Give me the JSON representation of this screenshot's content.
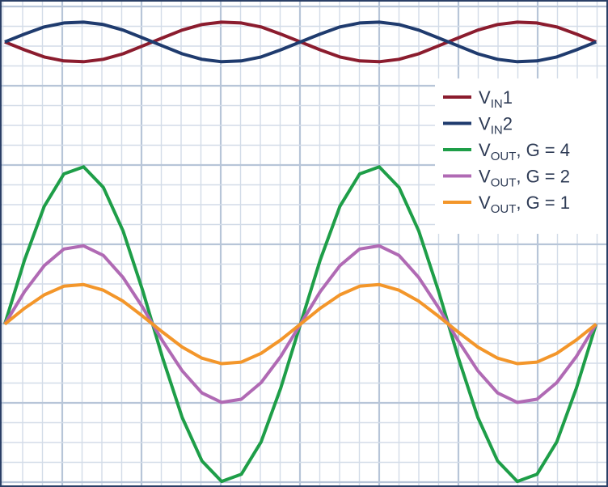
{
  "chart_data": {
    "type": "line",
    "x": [
      0,
      0.25,
      0.5,
      0.75,
      1,
      1.25,
      1.5,
      1.75,
      2,
      2.25,
      2.5,
      2.75,
      3,
      3.25,
      3.5,
      3.75,
      4,
      4.25,
      4.5,
      4.75,
      5,
      5.25,
      5.5,
      5.75,
      6,
      6.25,
      6.5,
      6.75,
      7,
      7.25,
      7.5
    ],
    "xlim": [
      -0.04,
      7.63
    ],
    "ylim": [
      -2.04,
      4.08
    ],
    "grid": true,
    "legend": "upper-right",
    "series": [
      {
        "name": {
          "main": "V",
          "sub": "IN",
          "rest": "1"
        },
        "color": "#8b1c2e",
        "values": [
          3.57,
          3.47,
          3.38,
          3.33,
          3.32,
          3.35,
          3.42,
          3.52,
          3.62,
          3.72,
          3.79,
          3.82,
          3.81,
          3.76,
          3.67,
          3.57,
          3.47,
          3.38,
          3.33,
          3.32,
          3.35,
          3.42,
          3.52,
          3.62,
          3.72,
          3.79,
          3.82,
          3.81,
          3.76,
          3.67,
          3.57
        ]
      },
      {
        "name": {
          "main": "V",
          "sub": "IN",
          "rest": "2"
        },
        "color": "#1f3b6e",
        "values": [
          3.57,
          3.67,
          3.76,
          3.81,
          3.82,
          3.79,
          3.72,
          3.62,
          3.52,
          3.42,
          3.35,
          3.32,
          3.33,
          3.38,
          3.47,
          3.57,
          3.67,
          3.76,
          3.81,
          3.82,
          3.79,
          3.72,
          3.62,
          3.52,
          3.42,
          3.35,
          3.32,
          3.33,
          3.38,
          3.47,
          3.57
        ]
      },
      {
        "name": {
          "main": "V",
          "sub": "OUT",
          "rest": ", G = 4"
        },
        "color": "#1e9e48",
        "values": [
          0,
          0.81,
          1.49,
          1.9,
          1.99,
          1.73,
          1.18,
          0.42,
          -0.42,
          -1.18,
          -1.73,
          -1.99,
          -1.9,
          -1.49,
          -0.81,
          0,
          0.81,
          1.49,
          1.9,
          1.99,
          1.73,
          1.18,
          0.42,
          -0.42,
          -1.18,
          -1.73,
          -1.99,
          -1.9,
          -1.49,
          -0.81,
          0
        ]
      },
      {
        "name": {
          "main": "V",
          "sub": "OUT",
          "rest": ", G = 2"
        },
        "color": "#b06ab4",
        "values": [
          0,
          0.41,
          0.74,
          0.95,
          0.99,
          0.87,
          0.59,
          0.21,
          -0.21,
          -0.59,
          -0.87,
          -0.99,
          -0.95,
          -0.74,
          -0.41,
          0,
          0.41,
          0.74,
          0.95,
          0.99,
          0.87,
          0.59,
          0.21,
          -0.21,
          -0.59,
          -0.87,
          -0.99,
          -0.95,
          -0.74,
          -0.41,
          0
        ]
      },
      {
        "name": {
          "main": "V",
          "sub": "OUT",
          "rest": ", G = 1"
        },
        "color": "#f3962a",
        "values": [
          0,
          0.2,
          0.37,
          0.48,
          0.5,
          0.43,
          0.29,
          0.1,
          -0.1,
          -0.29,
          -0.43,
          -0.5,
          -0.48,
          -0.37,
          -0.2,
          0,
          0.2,
          0.37,
          0.48,
          0.5,
          0.43,
          0.29,
          0.1,
          -0.1,
          -0.29,
          -0.43,
          -0.5,
          -0.48,
          -0.37,
          -0.2,
          0
        ]
      }
    ]
  }
}
